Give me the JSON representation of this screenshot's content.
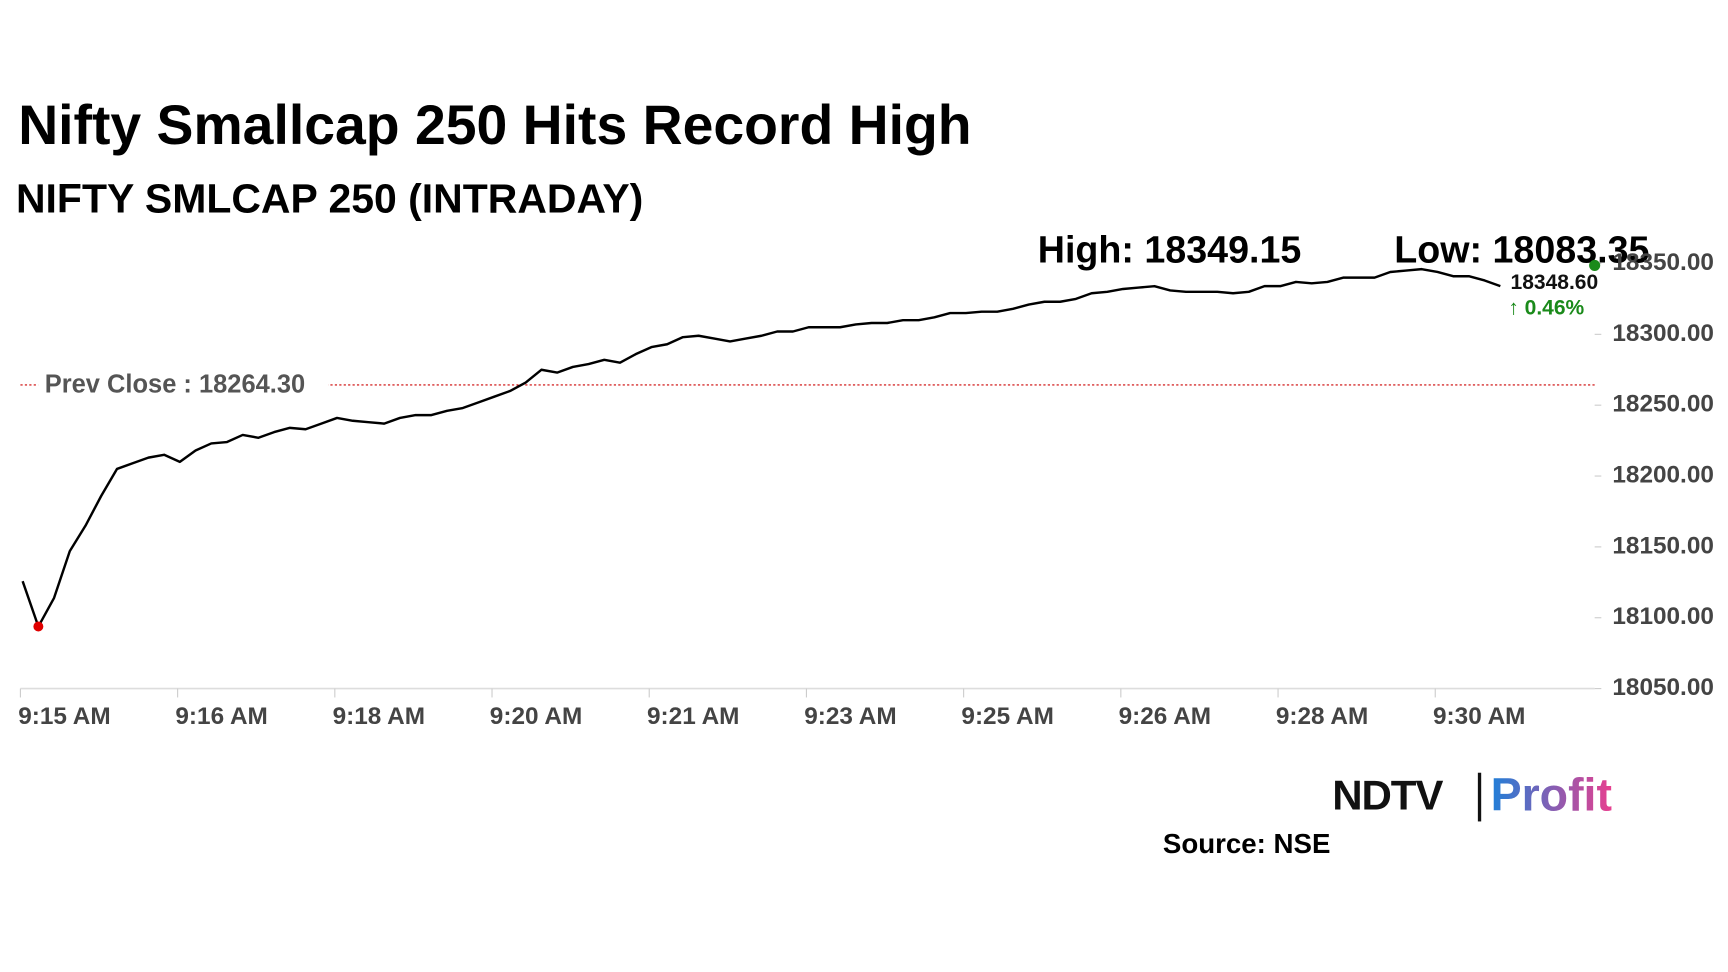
{
  "chart_data": {
    "type": "line",
    "title": "Nifty Smallcap 250 Hits Record High",
    "subtitle": "NIFTY SMLCAP 250 (INTRADAY)",
    "high_label": "High: 18349.15",
    "low_label": "Low: 18083.35",
    "last_value": {
      "value": 18348.6,
      "label": "18348.60"
    },
    "change_label": "↑ 0.46%",
    "prev_close": {
      "value": 18264.3,
      "label": "Prev Close : 18264.30"
    },
    "prev_close_color": "#cc0000",
    "categories": [
      "9:15 AM",
      null,
      null,
      null,
      null,
      null,
      null,
      null,
      null,
      null,
      "9:16 AM",
      null,
      null,
      null,
      null,
      null,
      null,
      null,
      null,
      null,
      "9:18 AM",
      null,
      null,
      null,
      null,
      null,
      null,
      null,
      null,
      null,
      "9:20 AM",
      null,
      null,
      null,
      null,
      null,
      null,
      null,
      null,
      null,
      "9:21 AM",
      null,
      null,
      null,
      null,
      null,
      null,
      null,
      null,
      null,
      "9:23 AM",
      null,
      null,
      null,
      null,
      null,
      null,
      null,
      null,
      null,
      "9:25 AM",
      null,
      null,
      null,
      null,
      null,
      null,
      null,
      null,
      null,
      "9:26 AM",
      null,
      null,
      null,
      null,
      null,
      null,
      null,
      null,
      null,
      "9:28 AM",
      null,
      null,
      null,
      null,
      null,
      null,
      null,
      null,
      null,
      "9:30 AM",
      null,
      null,
      null,
      null
    ],
    "series": [
      {
        "color": "#000000",
        "values": [
          18125.8,
          18093.8,
          18114,
          18147,
          18165,
          18186,
          18205,
          18209,
          18213,
          18215,
          18210,
          18218,
          18223,
          18224,
          18229,
          18227,
          18231,
          18234,
          18233,
          18237,
          18241,
          18239,
          18238,
          18237,
          18241,
          18243,
          18243,
          18246,
          18248,
          18252,
          18256,
          18260,
          18266,
          18275,
          18273,
          18277,
          18279,
          18282,
          18280,
          18286,
          18291,
          18293,
          18298,
          18299,
          18297,
          18295,
          18297,
          18299,
          18302,
          18302,
          18305,
          18305,
          18305,
          18307,
          18308,
          18308,
          18310,
          18310,
          18312,
          18315,
          18315,
          18316,
          18316,
          18318,
          18321,
          18323,
          18323,
          18325,
          18329,
          18330,
          18332,
          18333,
          18334,
          18331,
          18330,
          18330,
          18330,
          18329,
          18330,
          18334,
          18334,
          18337,
          18336,
          18337,
          18340,
          18340,
          18340,
          18344,
          18345,
          18346,
          18344,
          18341,
          18341,
          18338,
          18334
        ]
      }
    ],
    "low_marker_color": "#e00000",
    "last_marker_color": "#1a8a1a",
    "change_color": "#1a8a1a",
    "ylim": [
      18050,
      18350
    ],
    "yticks": [
      {
        "value": 18050,
        "label": "18050.00"
      },
      {
        "value": 18100,
        "label": "18100.00"
      },
      {
        "value": 18150,
        "label": "18150.00"
      },
      {
        "value": 18200,
        "label": "18200.00"
      },
      {
        "value": 18250,
        "label": "18250.00"
      },
      {
        "value": 18300,
        "label": "18300.00"
      },
      {
        "value": 18350,
        "label": "18350.00"
      }
    ],
    "source": "Source: NSE"
  },
  "logo": {
    "brand": "NDTV",
    "product": "Profit"
  }
}
